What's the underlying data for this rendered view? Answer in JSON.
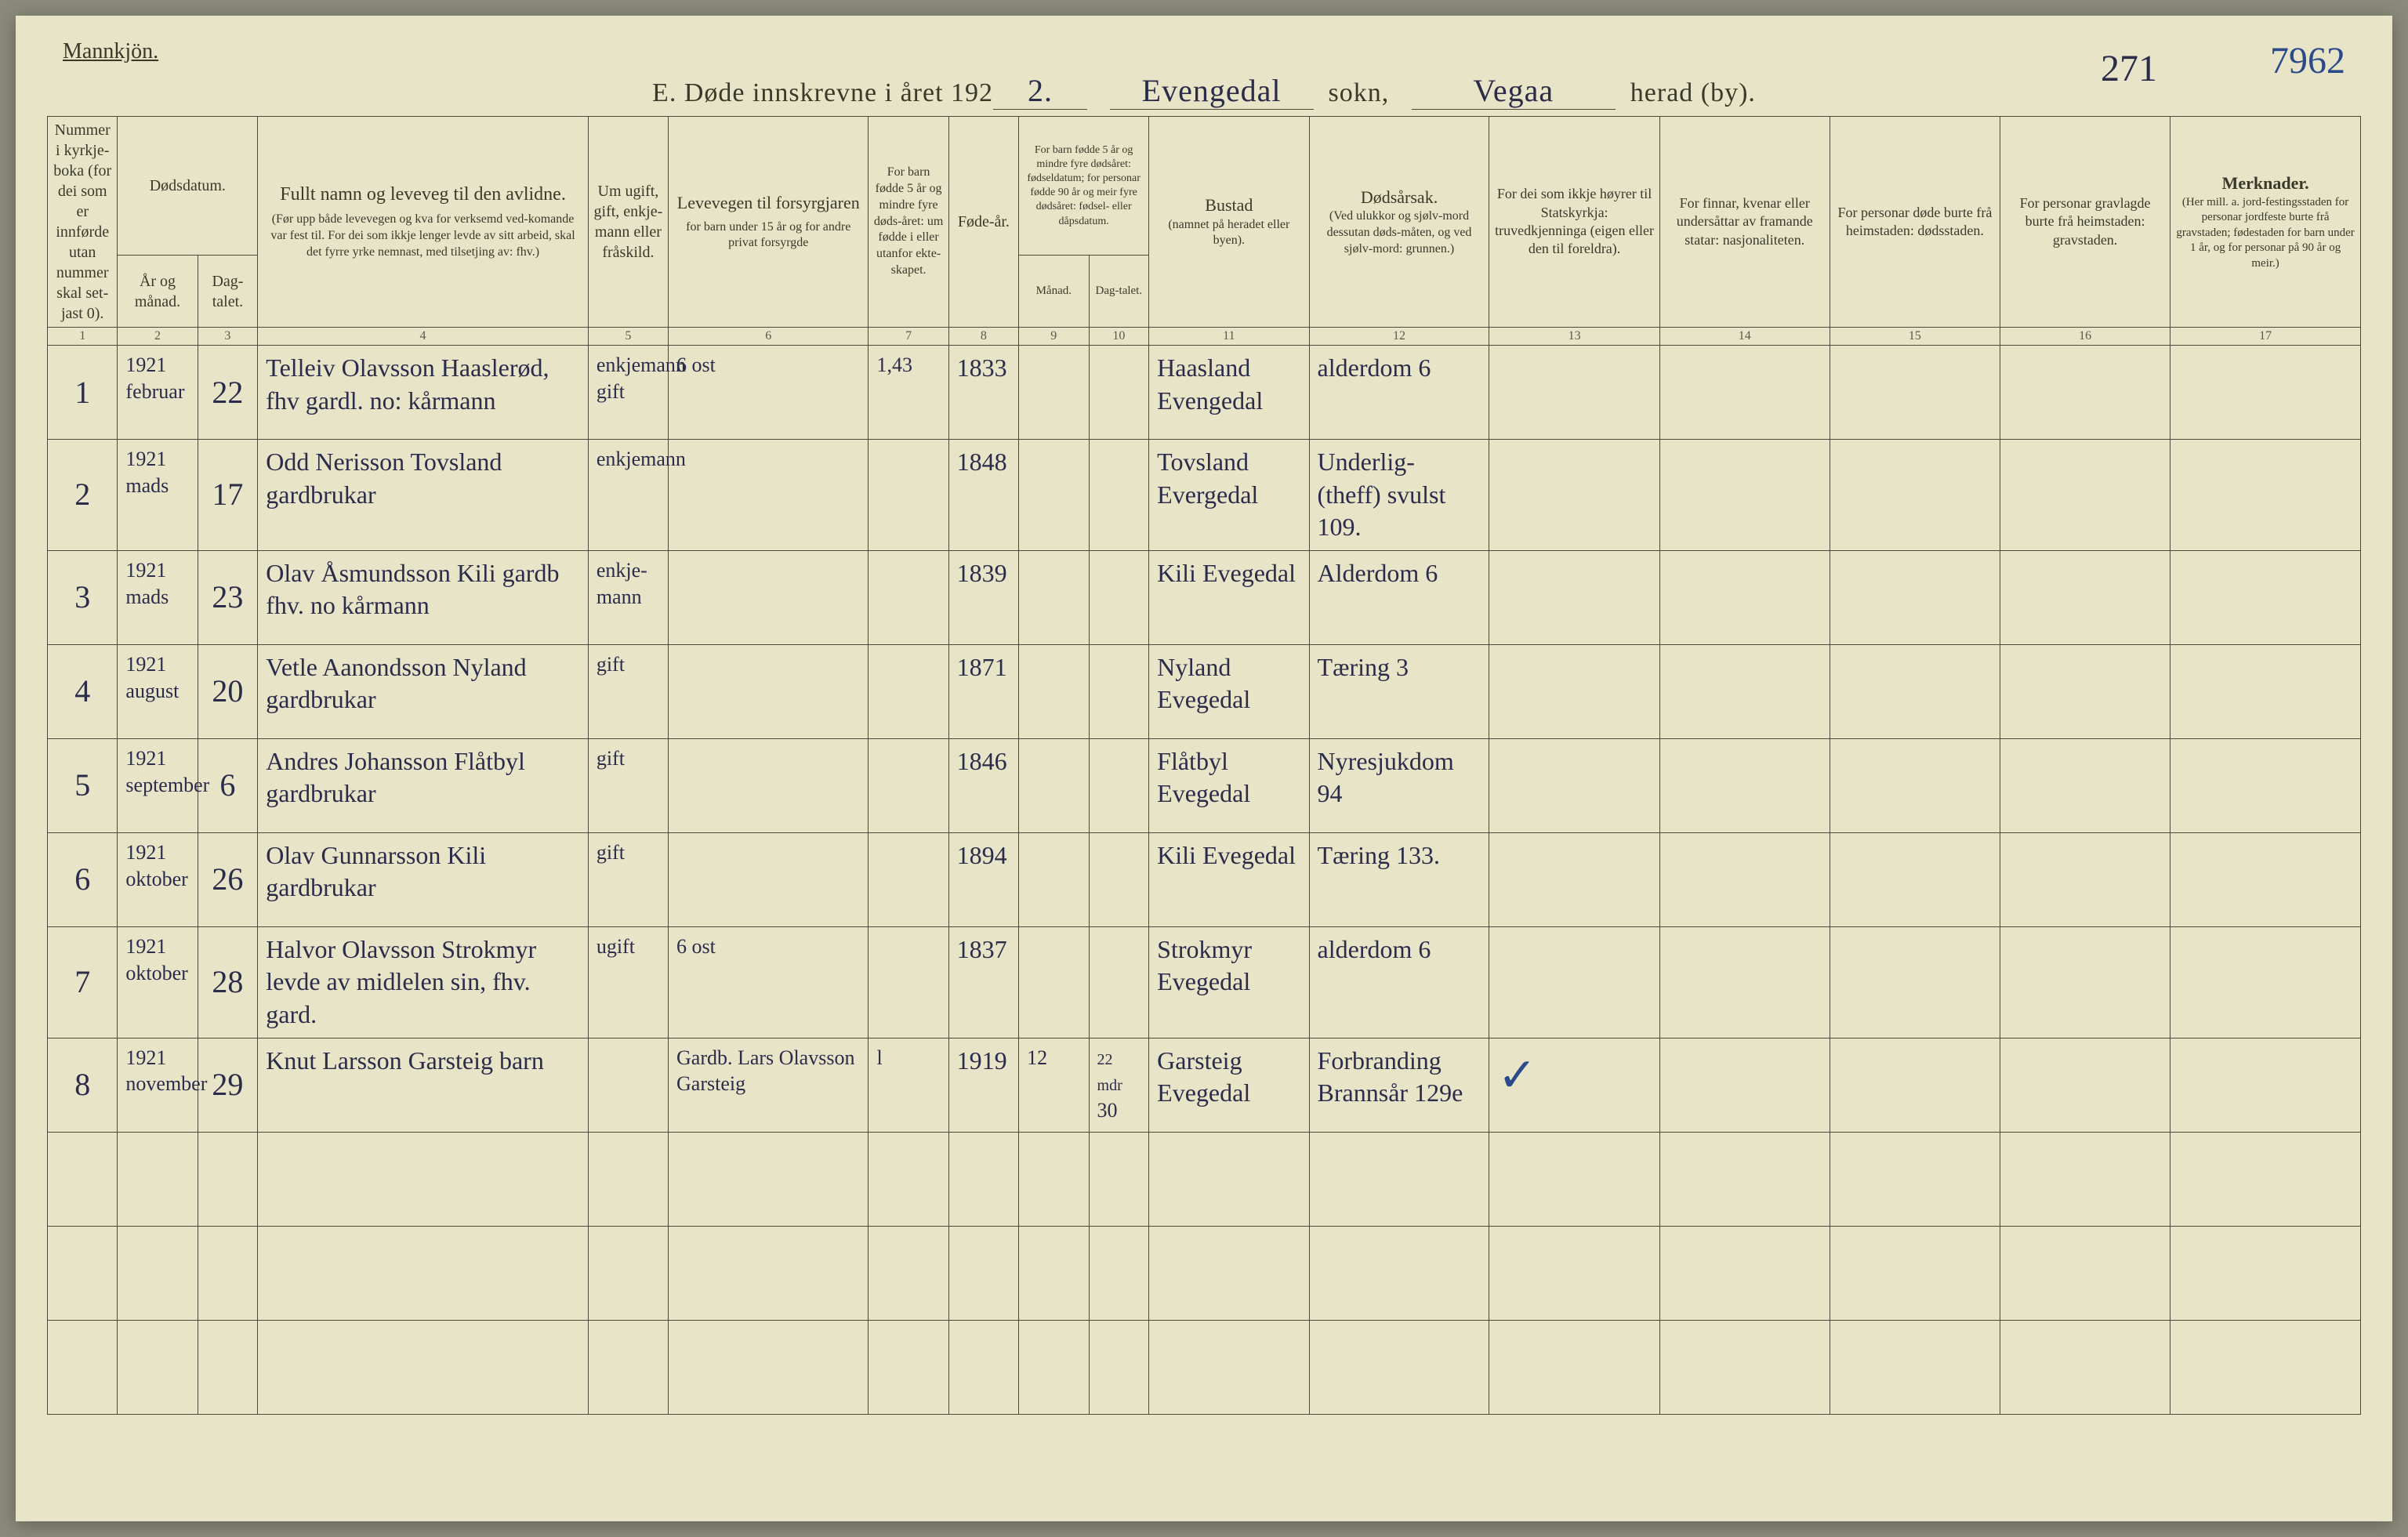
{
  "header": {
    "top_left": "Mannkjön.",
    "title_prefix": "E.   Døde innskrevne i året 192",
    "year_suffix": "2.",
    "parish_hw": "Evengedal",
    "label_sokn": "sokn,",
    "district_hw": "Vegaa",
    "page_hw": "271",
    "label_herad": "herad (by).",
    "corner_number": "7962"
  },
  "columns": {
    "c1": "Nummer i kyrkje-boka (for dei som er innførde utan nummer skal set-jast 0).",
    "c2_top": "Dødsdatum.",
    "c2a": "År og månad.",
    "c2b": "Dag-talet.",
    "c4": "Fullt namn og leveveg til den avlidne.",
    "c4_sub": "(Før upp både levevegen og kva for verksemd ved-komande var fest til. For dei som ikkje lenger levde av sitt arbeid, skal det fyrre yrke nemnast, med tilsetjing av: fhv.)",
    "c5": "Um ugift, gift, enkje-mann eller fråskild.",
    "c6": "Levevegen til forsyrgjaren",
    "c6_sub": "for barn under 15 år og for andre privat forsyrgde",
    "c7": "For barn fødde 5 år og mindre fyre døds-året: um fødde i eller utanfor ekte-skapet.",
    "c8": "Føde-år.",
    "c9_top": "For barn fødde 5 år og mindre fyre dødsåret: fødseldatum; for personar fødde 90 år og meir fyre dødsåret: fødsel- eller dåpsdatum.",
    "c9a": "Månad.",
    "c9b": "Dag-talet.",
    "c11": "Bustad",
    "c11_sub": "(namnet på heradet eller byen).",
    "c12": "Dødsårsak.",
    "c12_sub": "(Ved ulukkor og sjølv-mord dessutan døds-måten, og ved sjølv-mord: grunnen.)",
    "c13": "For dei som ikkje høyrer til Statskyrkja: truvedkjenninga (eigen eller den til foreldra).",
    "c14": "For finnar, kvenar eller undersåttar av framande statar: nasjonaliteten.",
    "c15": "For personar døde burte frå heimstaden: dødsstaden.",
    "c16": "For personar gravlagde burte frå heimstaden: gravstaden.",
    "c17": "Merknader.",
    "c17_sub": "(Her mill. a. jord-festingsstaden for personar jordfeste burte frå gravstaden; fødestaden for barn under 1 år, og for personar på 90 år og meir.)"
  },
  "colnums": [
    "1",
    "2",
    "3",
    "4",
    "5",
    "6",
    "7",
    "8",
    "9",
    "10",
    "11",
    "12",
    "13",
    "14",
    "15",
    "16",
    "17"
  ],
  "rows": [
    {
      "n": "1",
      "year": "1921",
      "month": "februar",
      "day": "22",
      "name": "Telleiv Olavsson Haaslerød, fhv gardl. no: kårmann",
      "status": "enkjemann gift",
      "provider": "6 ost",
      "ekte": "1,43",
      "birth": "1833",
      "m": "",
      "d": "",
      "place": "Haasland Evengedal",
      "cause": "alderdom 6",
      "c13": "",
      "c14": "",
      "c15": "",
      "c16": "",
      "c17": ""
    },
    {
      "n": "2",
      "year": "1921",
      "month": "mads",
      "day": "17",
      "name": "Odd Nerisson Tovsland gardbrukar",
      "status": "enkjemann",
      "provider": "",
      "ekte": "",
      "birth": "1848",
      "m": "",
      "d": "",
      "place": "Tovsland Evergedal",
      "cause": "Underlig- (theff) svulst 109.",
      "c13": "",
      "c14": "",
      "c15": "",
      "c16": "",
      "c17": ""
    },
    {
      "n": "3",
      "year": "1921",
      "month": "mads",
      "day": "23",
      "name": "Olav Åsmundsson Kili gardb fhv. no kårmann",
      "status": "enkje-mann",
      "provider": "",
      "ekte": "",
      "birth": "1839",
      "m": "",
      "d": "",
      "place": "Kili Evegedal",
      "cause": "Alderdom 6",
      "c13": "",
      "c14": "",
      "c15": "",
      "c16": "",
      "c17": ""
    },
    {
      "n": "4",
      "year": "1921",
      "month": "august",
      "day": "20",
      "name": "Vetle Aanondsson Nyland gardbrukar",
      "status": "gift",
      "provider": "",
      "ekte": "",
      "birth": "1871",
      "m": "",
      "d": "",
      "place": "Nyland Evegedal",
      "cause": "Tæring 3",
      "c13": "",
      "c14": "",
      "c15": "",
      "c16": "",
      "c17": ""
    },
    {
      "n": "5",
      "year": "1921",
      "month": "september",
      "day": "6",
      "name": "Andres Johansson Flåtbyl gardbrukar",
      "status": "gift",
      "provider": "",
      "ekte": "",
      "birth": "1846",
      "m": "",
      "d": "",
      "place": "Flåtbyl Evegedal",
      "cause": "Nyresjukdom 94",
      "c13": "",
      "c14": "",
      "c15": "",
      "c16": "",
      "c17": ""
    },
    {
      "n": "6",
      "year": "1921",
      "month": "oktober",
      "day": "26",
      "name": "Olav Gunnarsson Kili gardbrukar",
      "status": "gift",
      "provider": "",
      "ekte": "",
      "birth": "1894",
      "m": "",
      "d": "",
      "place": "Kili Evegedal",
      "cause": "Tæring 133.",
      "c13": "",
      "c14": "",
      "c15": "",
      "c16": "",
      "c17": ""
    },
    {
      "n": "7",
      "year": "1921",
      "month": "oktober",
      "day": "28",
      "name": "Halvor Olavsson Strokmyr levde av midlelen sin, fhv. gard.",
      "status": "ugift",
      "provider": "6 ost",
      "ekte": "",
      "birth": "1837",
      "m": "",
      "d": "",
      "place": "Strokmyr Evegedal",
      "cause": "alderdom 6",
      "c13": "",
      "c14": "",
      "c15": "",
      "c16": "",
      "c17": ""
    },
    {
      "n": "8",
      "year": "1921",
      "month": "november",
      "day": "29",
      "name": "Knut Larsson Garsteig barn",
      "status": "",
      "provider": "Gardb. Lars Olavsson Garsteig",
      "ekte": "l",
      "birth": "1919",
      "m": "12",
      "d": "30",
      "d_note": "22 mdr",
      "place": "Garsteig Evegedal",
      "cause": "Forbranding Brannsår 129e",
      "c13": "✓",
      "c14": "",
      "c15": "",
      "c16": "",
      "c17": ""
    }
  ]
}
